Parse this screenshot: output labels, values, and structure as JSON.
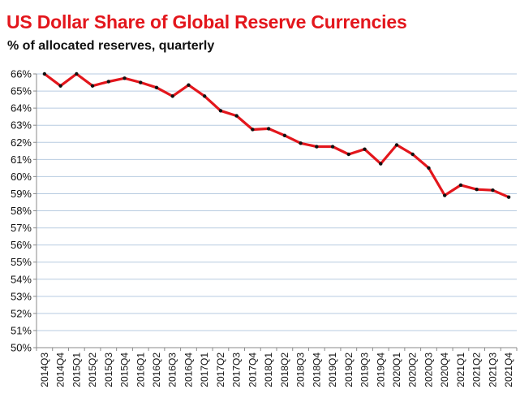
{
  "title": "US Dollar Share of Global Reserve Currencies",
  "subtitle": "% of allocated reserves, quarterly",
  "colors": {
    "title": "#e3161c",
    "line": "#e3161c",
    "marker": "#111111",
    "grid": "#b7cbe0",
    "axis": "#8a8a8a"
  },
  "chart_data": {
    "type": "line",
    "title": "US Dollar Share of Global Reserve Currencies",
    "subtitle": "% of allocated reserves, quarterly",
    "xlabel": "",
    "ylabel": "",
    "ylim": [
      50,
      66
    ],
    "yticks": [
      "50%",
      "51%",
      "52%",
      "53%",
      "54%",
      "55%",
      "56%",
      "57%",
      "58%",
      "59%",
      "60%",
      "61%",
      "62%",
      "63%",
      "64%",
      "65%",
      "66%"
    ],
    "grid": "horizontal",
    "legend": "none",
    "categories": [
      "2014Q3",
      "2014Q4",
      "2015Q1",
      "2015Q2",
      "2015Q3",
      "2015Q4",
      "2016Q1",
      "2016Q2",
      "2016Q3",
      "2016Q4",
      "2017Q1",
      "2017Q2",
      "2017Q3",
      "2017Q4",
      "2018Q1",
      "2018Q2",
      "2018Q3",
      "2018Q4",
      "2019Q1",
      "2019Q2",
      "2019Q3",
      "2019Q4",
      "2020Q1",
      "2020Q2",
      "2020Q3",
      "2020Q4",
      "2021Q1",
      "2021Q2",
      "2021Q3",
      "2021Q4"
    ],
    "series": [
      {
        "values": [
          66.0,
          65.3,
          66.0,
          65.3,
          65.55,
          65.75,
          65.5,
          65.2,
          64.7,
          65.35,
          64.7,
          63.85,
          63.55,
          62.75,
          62.8,
          62.4,
          61.95,
          61.75,
          61.75,
          61.3,
          61.6,
          60.75,
          61.85,
          61.3,
          60.5,
          58.9,
          59.5,
          59.25,
          59.2,
          58.8
        ]
      }
    ]
  }
}
